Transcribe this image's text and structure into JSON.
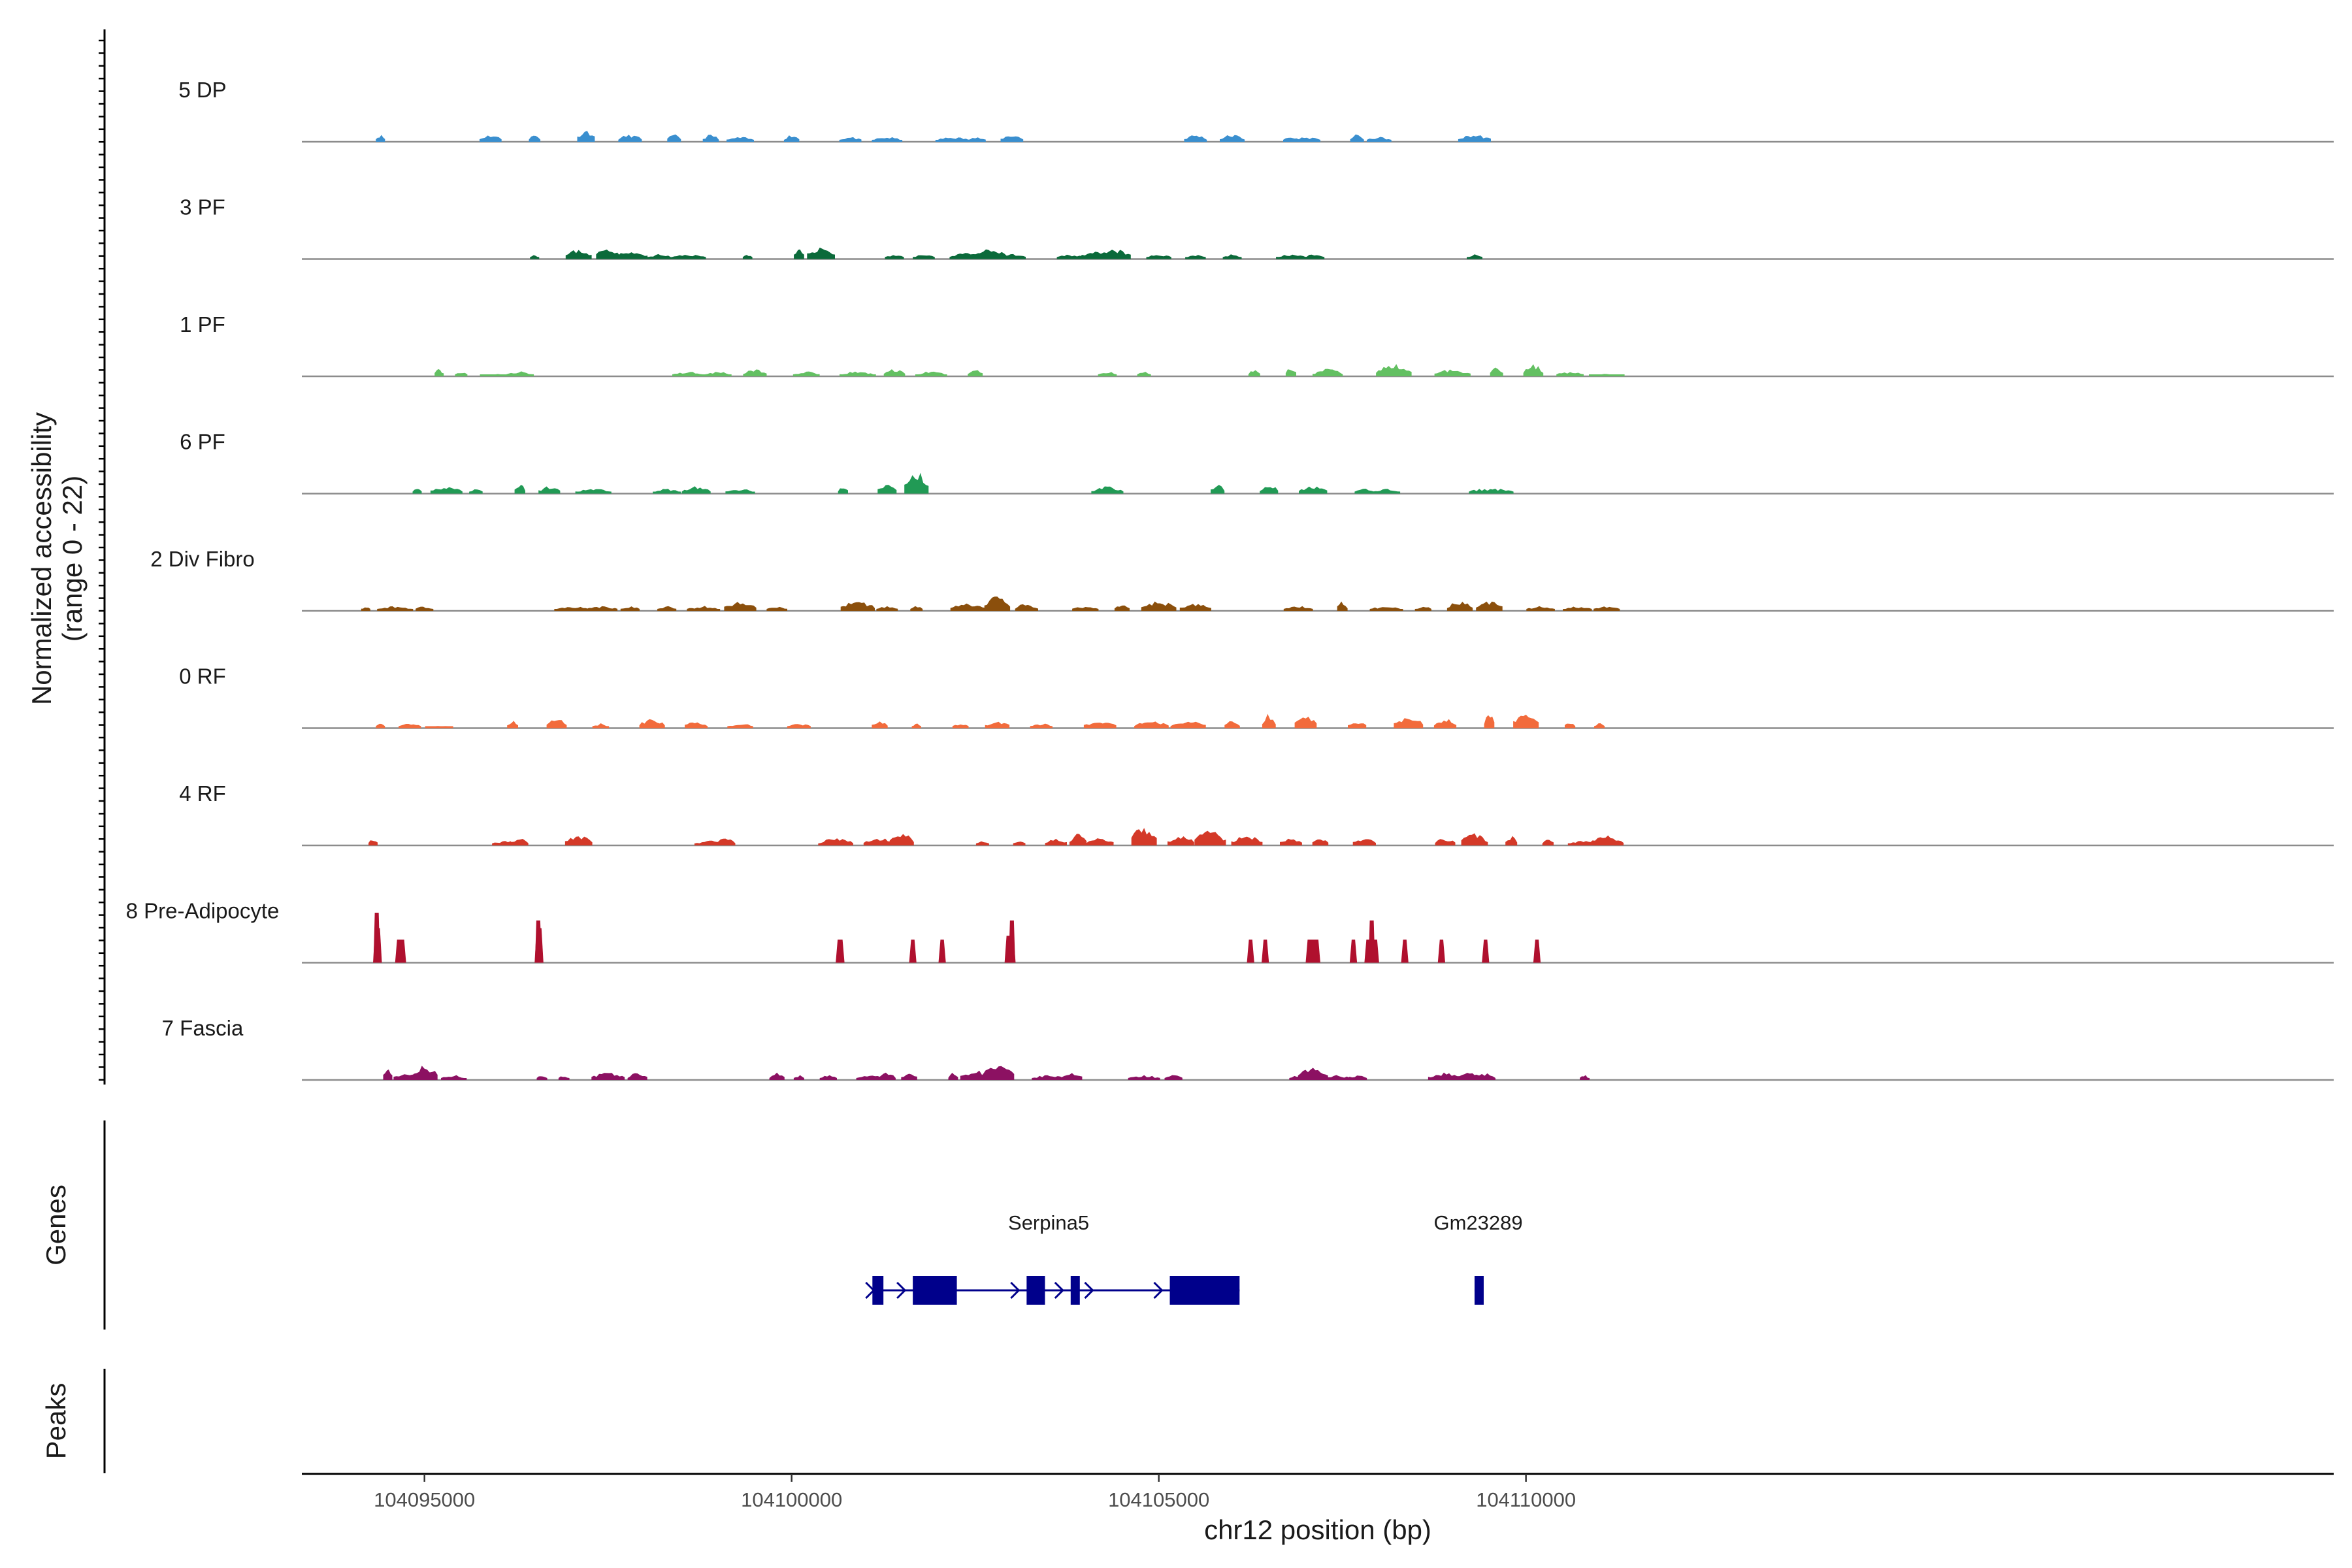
{
  "chart_data": {
    "type": "area",
    "region": {
      "chromosome": "chr12",
      "start": 104093300,
      "end": 104121000
    },
    "ylabel_line1": "Normalized accessibility",
    "ylabel_line2": "(range 0 - 22)",
    "y_range": [
      0,
      22
    ],
    "xlabel": "chr12 position (bp)",
    "x_ticks": [
      {
        "value": 104095000,
        "label": "104095000"
      },
      {
        "value": 104100000,
        "label": "104100000"
      },
      {
        "value": 104105000,
        "label": "104105000"
      },
      {
        "value": 104110000,
        "label": "104110000"
      }
    ],
    "genes_panel_label": "Genes",
    "peaks_panel_label": "Peaks",
    "tracks": [
      {
        "name": "5 DP",
        "color": "#3a8fcf",
        "span": [
          104094000,
          104110500
        ],
        "scale": 1.0,
        "seed": 11,
        "peaks": [
          [
            104094400,
            3
          ],
          [
            104095900,
            3
          ],
          [
            104096500,
            3
          ],
          [
            104097200,
            5
          ],
          [
            104097800,
            3
          ],
          [
            104098400,
            3
          ],
          [
            104098900,
            3
          ],
          [
            104099300,
            2
          ],
          [
            104100000,
            3
          ],
          [
            104100800,
            2
          ],
          [
            104101300,
            2
          ],
          [
            104102200,
            2
          ],
          [
            104102500,
            2
          ],
          [
            104103000,
            3
          ],
          [
            104105500,
            3
          ],
          [
            104106000,
            3
          ],
          [
            104106800,
            2
          ],
          [
            104107000,
            2
          ],
          [
            104107700,
            3
          ],
          [
            104108000,
            2
          ],
          [
            104109300,
            3
          ]
        ]
      },
      {
        "name": "3 PF",
        "color": "#0b6a3a",
        "span": [
          104096000,
          104121000
        ],
        "scale": 1.0,
        "seed": 23,
        "peaks": [
          [
            104096500,
            2
          ],
          [
            104097100,
            4
          ],
          [
            104097500,
            5
          ],
          [
            104097800,
            3
          ],
          [
            104098200,
            2
          ],
          [
            104098600,
            2
          ],
          [
            104099400,
            2
          ],
          [
            104100100,
            4
          ],
          [
            104100400,
            5
          ],
          [
            104101400,
            2
          ],
          [
            104101800,
            2
          ],
          [
            104102400,
            3
          ],
          [
            104102700,
            4
          ],
          [
            104103000,
            2
          ],
          [
            104103800,
            2
          ],
          [
            104104100,
            3
          ],
          [
            104104400,
            4
          ],
          [
            104105000,
            2
          ],
          [
            104105500,
            2
          ],
          [
            104106000,
            2
          ],
          [
            104106800,
            2
          ],
          [
            104107100,
            2
          ],
          [
            104109300,
            2
          ]
        ]
      },
      {
        "name": "1 PF",
        "color": "#63c062",
        "span": [
          104095000,
          104121000
        ],
        "scale": 1.0,
        "seed": 37,
        "peaks": [
          [
            104095200,
            3
          ],
          [
            104095500,
            2
          ],
          [
            104096000,
            1
          ],
          [
            104096300,
            2
          ],
          [
            104098600,
            2
          ],
          [
            104099000,
            2
          ],
          [
            104099500,
            3
          ],
          [
            104100200,
            2
          ],
          [
            104100900,
            2
          ],
          [
            104101400,
            3
          ],
          [
            104101900,
            2
          ],
          [
            104102500,
            3
          ],
          [
            104104300,
            2
          ],
          [
            104104800,
            2
          ],
          [
            104106300,
            3
          ],
          [
            104106800,
            4
          ],
          [
            104107300,
            3
          ],
          [
            104108200,
            5
          ],
          [
            104109000,
            3
          ],
          [
            104109600,
            4
          ],
          [
            104110100,
            5
          ],
          [
            104110600,
            2
          ],
          [
            104111100,
            1
          ]
        ]
      },
      {
        "name": "6 PF",
        "color": "#219a55",
        "span": [
          104094500,
          104121000
        ],
        "scale": 1.0,
        "seed": 41,
        "peaks": [
          [
            104094900,
            2
          ],
          [
            104095300,
            3
          ],
          [
            104095700,
            2
          ],
          [
            104096300,
            4
          ],
          [
            104096700,
            3
          ],
          [
            104097300,
            2
          ],
          [
            104098300,
            2
          ],
          [
            104098700,
            3
          ],
          [
            104099300,
            2
          ],
          [
            104100700,
            3
          ],
          [
            104101300,
            4
          ],
          [
            104101700,
            9
          ],
          [
            104104300,
            3
          ],
          [
            104105800,
            4
          ],
          [
            104106500,
            4
          ],
          [
            104107100,
            3
          ],
          [
            104107800,
            2
          ],
          [
            104108100,
            2
          ],
          [
            104109400,
            2
          ],
          [
            104109600,
            2
          ]
        ]
      },
      {
        "name": "2 Div Fibro",
        "color": "#8b4f0c",
        "span": [
          104094000,
          104121000
        ],
        "scale": 1.0,
        "seed": 53,
        "peaks": [
          [
            104094200,
            2
          ],
          [
            104094600,
            2
          ],
          [
            104095000,
            2
          ],
          [
            104097000,
            2
          ],
          [
            104097400,
            2
          ],
          [
            104097800,
            2
          ],
          [
            104098300,
            2
          ],
          [
            104098800,
            2
          ],
          [
            104099300,
            4
          ],
          [
            104099800,
            2
          ],
          [
            104100900,
            4
          ],
          [
            104101300,
            2
          ],
          [
            104101700,
            2
          ],
          [
            104102400,
            3
          ],
          [
            104102800,
            6
          ],
          [
            104103200,
            3
          ],
          [
            104104000,
            2
          ],
          [
            104104500,
            3
          ],
          [
            104105000,
            4
          ],
          [
            104105500,
            3
          ],
          [
            104106900,
            2
          ],
          [
            104107500,
            4
          ],
          [
            104108100,
            2
          ],
          [
            104108600,
            2
          ],
          [
            104109100,
            4
          ],
          [
            104109500,
            4
          ],
          [
            104110200,
            2
          ],
          [
            104110700,
            2
          ],
          [
            104111100,
            2
          ]
        ]
      },
      {
        "name": "0 RF",
        "color": "#f26b3c",
        "span": [
          104094000,
          104121000
        ],
        "scale": 1.0,
        "seed": 67,
        "peaks": [
          [
            104094400,
            2
          ],
          [
            104094800,
            2
          ],
          [
            104095200,
            1
          ],
          [
            104096200,
            3
          ],
          [
            104096800,
            4
          ],
          [
            104097400,
            2
          ],
          [
            104098100,
            4
          ],
          [
            104098700,
            3
          ],
          [
            104099300,
            2
          ],
          [
            104100100,
            2
          ],
          [
            104101200,
            3
          ],
          [
            104101700,
            2
          ],
          [
            104102300,
            2
          ],
          [
            104102800,
            3
          ],
          [
            104103400,
            2
          ],
          [
            104104200,
            3
          ],
          [
            104104900,
            3
          ],
          [
            104105400,
            3
          ],
          [
            104106000,
            3
          ],
          [
            104106500,
            6
          ],
          [
            104107000,
            5
          ],
          [
            104107700,
            3
          ],
          [
            104108400,
            5
          ],
          [
            104108900,
            4
          ],
          [
            104109500,
            6
          ],
          [
            104110000,
            7
          ],
          [
            104110600,
            3
          ],
          [
            104111000,
            2
          ]
        ]
      },
      {
        "name": "4 RF",
        "color": "#d43928",
        "span": [
          104094000,
          104121000
        ],
        "scale": 1.0,
        "seed": 79,
        "peaks": [
          [
            104094300,
            3
          ],
          [
            104096100,
            2
          ],
          [
            104096300,
            3
          ],
          [
            104097100,
            4
          ],
          [
            104098900,
            2
          ],
          [
            104099100,
            3
          ],
          [
            104100600,
            3
          ],
          [
            104101200,
            3
          ],
          [
            104101500,
            5
          ],
          [
            104102600,
            2
          ],
          [
            104103100,
            2
          ],
          [
            104103600,
            3
          ],
          [
            104103900,
            5
          ],
          [
            104104200,
            3
          ],
          [
            104104800,
            8
          ],
          [
            104105300,
            4
          ],
          [
            104105700,
            6
          ],
          [
            104106200,
            4
          ],
          [
            104106800,
            3
          ],
          [
            104107200,
            3
          ],
          [
            104107800,
            3
          ],
          [
            104108900,
            3
          ],
          [
            104109300,
            5
          ],
          [
            104109800,
            4
          ],
          [
            104110300,
            3
          ],
          [
            104110800,
            2
          ],
          [
            104111100,
            4
          ]
        ]
      },
      {
        "name": "8 Pre-Adipocyte",
        "color": "#b0102e",
        "span": [
          104094000,
          104121000
        ],
        "scale": 1.0,
        "seed": 0,
        "blocks": [
          [
            104094300,
            104094420,
            18
          ],
          [
            104094600,
            104094750,
            12
          ],
          [
            104096500,
            104096620,
            18
          ],
          [
            104100600,
            104100720,
            12
          ],
          [
            104101600,
            104101700,
            12
          ],
          [
            104102000,
            104102100,
            12
          ],
          [
            104102900,
            104103050,
            14
          ],
          [
            104106200,
            104106300,
            12
          ],
          [
            104106400,
            104106500,
            12
          ],
          [
            104107000,
            104107200,
            12
          ],
          [
            104107600,
            104107700,
            12
          ],
          [
            104107800,
            104108000,
            12
          ],
          [
            104108300,
            104108400,
            12
          ],
          [
            104108800,
            104108900,
            12
          ],
          [
            104109400,
            104109500,
            12
          ],
          [
            104110100,
            104110200,
            12
          ]
        ],
        "spikes": [
          [
            104094350,
            26
          ],
          [
            104096550,
            22
          ],
          [
            104103000,
            22
          ],
          [
            104107900,
            22
          ]
        ]
      },
      {
        "name": "7 Fascia",
        "color": "#8c1162",
        "span": [
          104094000,
          104121000
        ],
        "scale": 1.0,
        "seed": 97,
        "peaks": [
          [
            104094500,
            5
          ],
          [
            104094800,
            3
          ],
          [
            104095000,
            6
          ],
          [
            104095400,
            2
          ],
          [
            104096600,
            2
          ],
          [
            104096900,
            2
          ],
          [
            104097500,
            3
          ],
          [
            104097900,
            3
          ],
          [
            104099800,
            3
          ],
          [
            104100100,
            2
          ],
          [
            104100500,
            2
          ],
          [
            104101100,
            2
          ],
          [
            104101300,
            3
          ],
          [
            104101600,
            3
          ],
          [
            104102200,
            3
          ],
          [
            104102500,
            4
          ],
          [
            104102800,
            6
          ],
          [
            104103500,
            2
          ],
          [
            104103800,
            3
          ],
          [
            104104800,
            2
          ],
          [
            104105200,
            2
          ],
          [
            104106900,
            2
          ],
          [
            104107100,
            5
          ],
          [
            104107400,
            2
          ],
          [
            104107700,
            2
          ],
          [
            104108900,
            3
          ],
          [
            104109200,
            4
          ],
          [
            104109400,
            3
          ],
          [
            104110800,
            2
          ]
        ]
      }
    ],
    "genes": {
      "color": "#00008b",
      "items": [
        {
          "name": "Serpina5",
          "start": 104101100,
          "end": 104106100,
          "strand": "+",
          "exons": [
            [
              104101100,
              104101250
            ],
            [
              104101650,
              104102250
            ],
            [
              104103200,
              104103450
            ],
            [
              104103800,
              104103900
            ],
            [
              104105150,
              104106100
            ]
          ]
        },
        {
          "name": "Gm23289",
          "start": 104109300,
          "end": 104109400,
          "strand": "+",
          "exons": [
            [
              104109300,
              104109400
            ]
          ]
        }
      ]
    },
    "peaks_panel": {
      "items": []
    }
  }
}
